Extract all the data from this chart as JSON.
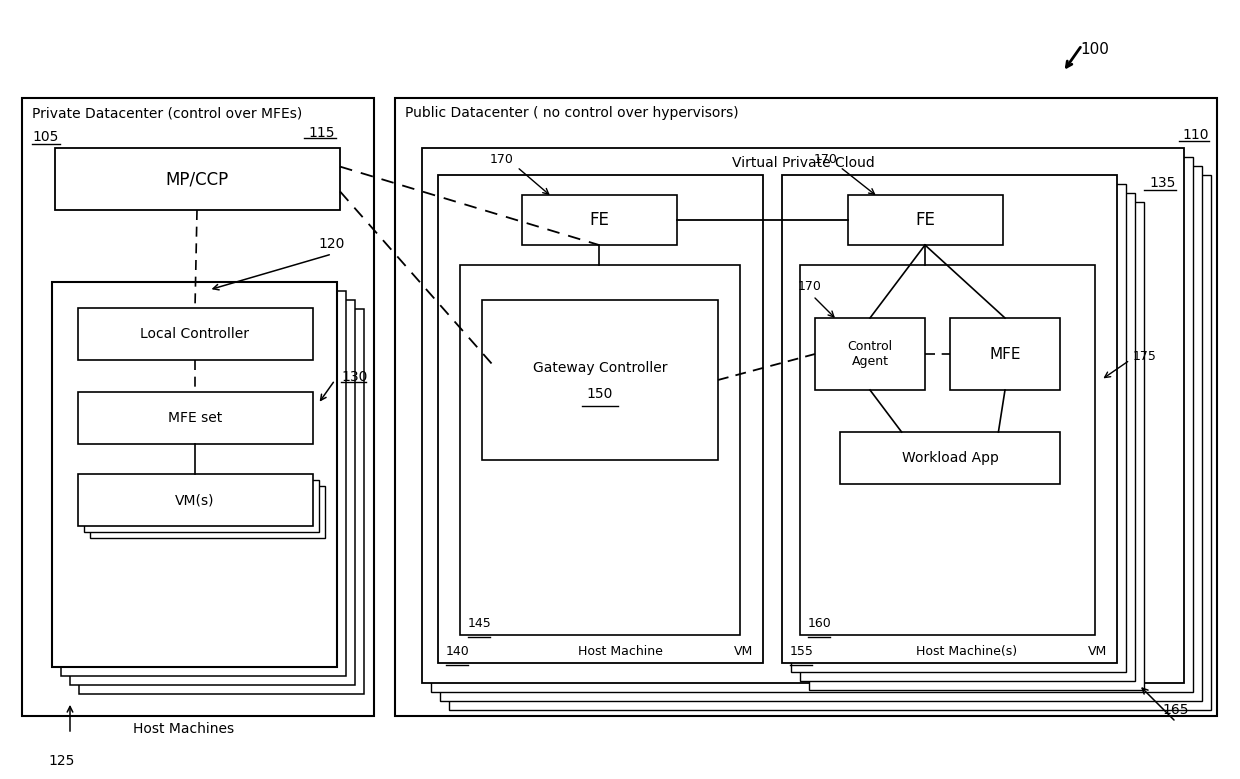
{
  "fig_width": 12.4,
  "fig_height": 7.79,
  "bg_color": "#ffffff",
  "label_100": "100",
  "label_105": "105",
  "label_110": "110",
  "label_115": "115",
  "label_120": "120",
  "label_125": "125",
  "label_130": "130",
  "label_135": "135",
  "label_140": "140",
  "label_145": "145",
  "label_150": "150",
  "label_155": "155",
  "label_160": "160",
  "label_165": "165",
  "label_170a": "170",
  "label_170b": "170",
  "label_170c": "170",
  "label_175": "175",
  "title_private": "Private Datacenter (control over MFEs)",
  "title_public": "Public Datacenter ( no control over hypervisors)",
  "title_vpc": "Virtual Private Cloud",
  "box_mpccp": "MP/CCP",
  "box_local_ctrl": "Local Controller",
  "box_mfe_set": "MFE set",
  "box_vms": "VM(s)",
  "label_host_machines": "Host Machines",
  "box_fe1": "FE",
  "box_fe2": "FE",
  "box_gw_ctrl": "Gateway Controller",
  "label_gw_num": "150",
  "label_host_machine": "Host Machine",
  "label_vm1": "VM",
  "box_control_agent": "Control\nAgent",
  "box_mfe2": "MFE",
  "box_workload": "Workload App",
  "label_host_machines2": "Host Machine(s)",
  "label_vm2": "VM"
}
